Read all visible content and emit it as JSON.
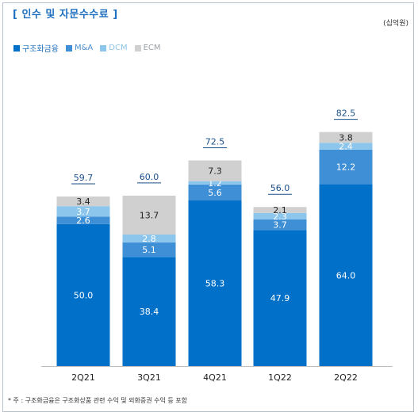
{
  "header": {
    "title": "[ 인수 및 자문수수료 ]",
    "unit": "(십억원)"
  },
  "legend": [
    {
      "label": "구조화금융",
      "color": "#0070c8"
    },
    {
      "label": "M&A",
      "color": "#3e8fd6"
    },
    {
      "label": "DCM",
      "color": "#8cc6ec"
    },
    {
      "label": "ECM",
      "color": "#d0d0d0"
    }
  ],
  "chart_data": {
    "type": "bar",
    "stacked": true,
    "categories": [
      "2Q21",
      "3Q21",
      "4Q21",
      "1Q22",
      "2Q22"
    ],
    "series": [
      {
        "name": "구조화금융",
        "color": "#0070c8",
        "values": [
          50.0,
          38.4,
          58.3,
          47.9,
          64.0
        ]
      },
      {
        "name": "M&A",
        "color": "#3e8fd6",
        "values": [
          2.6,
          5.1,
          5.6,
          3.7,
          12.2
        ]
      },
      {
        "name": "DCM",
        "color": "#8cc6ec",
        "values": [
          3.7,
          2.8,
          1.2,
          2.3,
          2.4
        ]
      },
      {
        "name": "ECM",
        "color": "#d0d0d0",
        "values": [
          3.4,
          13.7,
          7.3,
          2.1,
          3.8
        ]
      }
    ],
    "value_labels": [
      [
        "50.0",
        "38.4",
        "58.3",
        "47.9",
        "64.0"
      ],
      [
        "2.6",
        "5.1",
        "5.6",
        "3.7",
        "12.2"
      ],
      [
        "3.7",
        "2.8",
        "1.2",
        "2.3",
        "2.4"
      ],
      [
        "3.4",
        "13.7",
        "7.3",
        "2.1",
        "3.8"
      ]
    ],
    "totals": [
      59.7,
      60.0,
      72.5,
      56.0,
      82.5
    ],
    "total_labels": [
      "59.7",
      "60.0",
      "72.5",
      "56.0",
      "82.5"
    ],
    "ylim": [
      0,
      90
    ],
    "legend_position": "top-left"
  },
  "footnote": "* 주 : 구조화금융은 구조화상품 관련 수익 및 외화증권 수익 등 포함"
}
